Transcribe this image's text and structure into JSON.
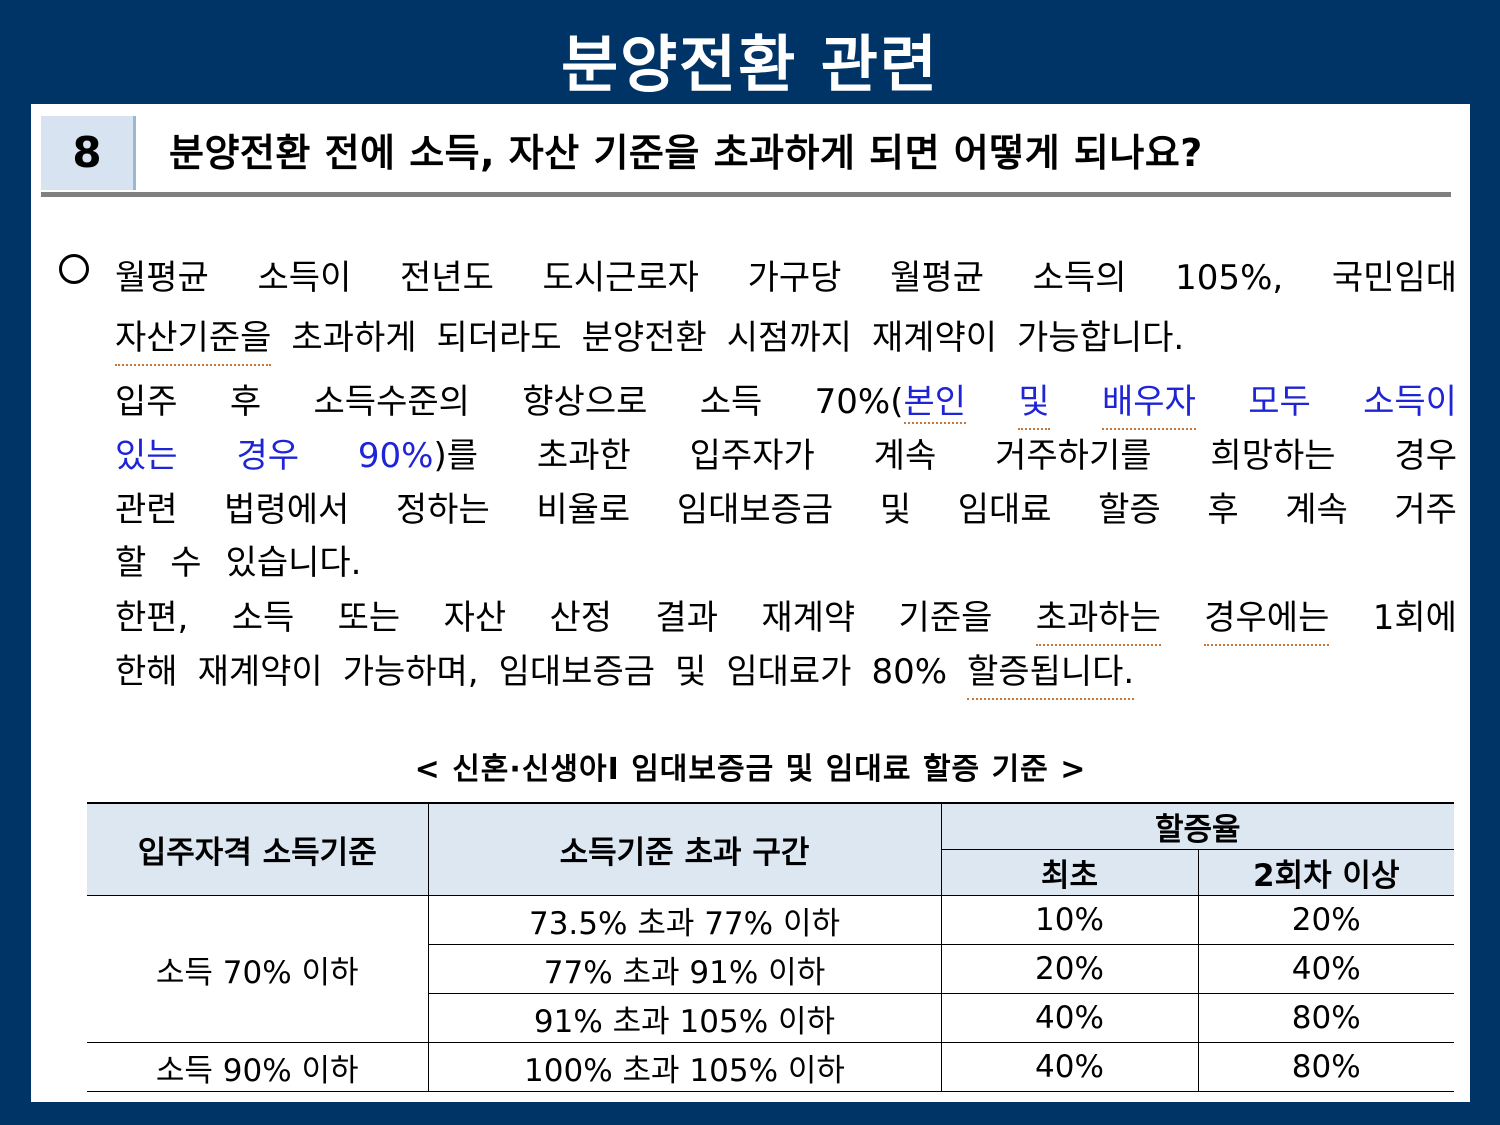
{
  "slide_title": "분양전환 관련",
  "question": {
    "number": "8",
    "text": "분양전환 전에 소득, 자산 기준을 초과하게 되면 어떻게 되나요?"
  },
  "paragraph": {
    "line1": [
      "월평균",
      "소득이",
      "전년도",
      "도시근로자",
      "가구당",
      "월평균",
      "소득의",
      "105%,",
      "국민임대"
    ],
    "line2": [
      "자산기준을",
      "초과하게",
      "되더라도",
      "분양전환",
      "시점까지",
      "재계약이",
      "가능합니다."
    ],
    "line3_pre": [
      "입주",
      "후",
      "소득수준의",
      "향상으로",
      "소득",
      "70%("
    ],
    "line3_blue": [
      "본인",
      "및",
      "배우자",
      "모두",
      "소득이"
    ],
    "line4_blue": [
      "있는",
      "경우",
      "90%"
    ],
    "line4_rest": [
      ")를",
      "초과한",
      "입주자가",
      "계속",
      "거주하기를",
      "희망하는",
      "경우"
    ],
    "line5": [
      "관련",
      "법령에서",
      "정하는",
      "비율로",
      "임대보증금",
      "및",
      "임대료",
      "할증",
      "후",
      "계속",
      "거주"
    ],
    "line6": [
      "할",
      "수",
      "있습니다."
    ],
    "line7": [
      "한편,",
      "소득",
      "또는",
      "자산",
      "산정",
      "결과",
      "재계약",
      "기준을",
      "초과하는",
      "경우에는",
      "1회에"
    ],
    "line8": [
      "한해",
      "재계약이",
      "가능하며,",
      "임대보증금",
      "및",
      "임대료가",
      "80%",
      "할증됩니다."
    ]
  },
  "table": {
    "caption": "< 신혼·신생아Ⅰ 임대보증금 및 임대료 할증 기준 >",
    "headers": {
      "col1": "입주자격 소득기준",
      "col2": "소득기준 초과 구간",
      "group": "할증율",
      "sub1": "최초",
      "sub2": "2회차 이상"
    },
    "group_a_label": "소득 70% 이하",
    "group_b_label": "소득 90% 이하",
    "rows": [
      {
        "range": "73.5% 초과 77% 이하",
        "first": "10%",
        "second": "20%"
      },
      {
        "range": "77% 초과 91% 이하",
        "first": "20%",
        "second": "40%"
      },
      {
        "range": "91% 초과 105% 이하",
        "first": "40%",
        "second": "80%"
      },
      {
        "range": "100% 초과 105% 이하",
        "first": "40%",
        "second": "80%"
      }
    ]
  }
}
